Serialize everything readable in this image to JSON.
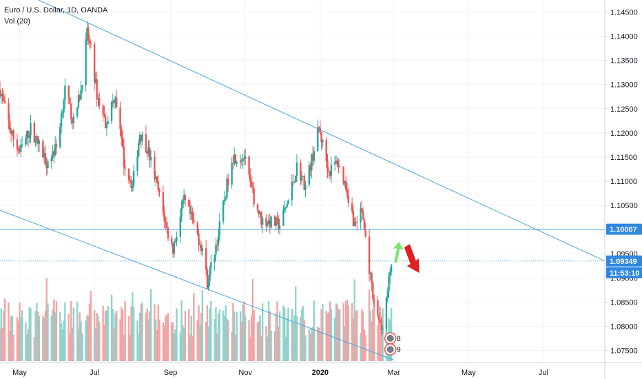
{
  "legend": {
    "title": "Euro / U.S. Dollar, 1D, OANDA",
    "volume_label": "Vol (20)"
  },
  "colors": {
    "up": "#26a69a",
    "down": "#ef5350",
    "vol_up": "#8fd3cc",
    "vol_down": "#f3a4a4",
    "trendline": "#4aa3df",
    "price_tag": "#2f87e0",
    "arrow_up": "#7be36f",
    "arrow_down": "#e02020",
    "grid": "#f0f3fa",
    "axis_text": "#131722"
  },
  "chart_data": {
    "type": "candlestick",
    "symbol": "Euro / U.S. Dollar",
    "interval": "1D",
    "source": "OANDA",
    "x_domain": [
      "2019-04-15",
      "2020-08-20"
    ],
    "y_range": [
      1.0725,
      1.1475
    ],
    "y_ticks": [
      "1.07500",
      "1.08000",
      "1.08500",
      "1.09000",
      "1.09500",
      "1.10000",
      "1.10500",
      "1.11000",
      "1.11500",
      "1.12000",
      "1.12500",
      "1.13000",
      "1.13500",
      "1.14000",
      "1.14500"
    ],
    "x_ticks": [
      {
        "label": "May",
        "date": "2019-05-01"
      },
      {
        "label": "Jul",
        "date": "2019-07-01"
      },
      {
        "label": "Sep",
        "date": "2019-09-01"
      },
      {
        "label": "Nov",
        "date": "2019-11-01"
      },
      {
        "label": "2020",
        "date": "2020-01-01"
      },
      {
        "label": "Mar",
        "date": "2020-03-01"
      },
      {
        "label": "May",
        "date": "2020-05-01"
      },
      {
        "label": "Jul",
        "date": "2020-07-01"
      }
    ],
    "price_path": [
      [
        "2019-04-15",
        1.129
      ],
      [
        "2019-04-24",
        1.12
      ],
      [
        "2019-05-01",
        1.116
      ],
      [
        "2019-05-10",
        1.121
      ],
      [
        "2019-05-23",
        1.114
      ],
      [
        "2019-05-31",
        1.117
      ],
      [
        "2019-06-07",
        1.129
      ],
      [
        "2019-06-14",
        1.122
      ],
      [
        "2019-06-20",
        1.129
      ],
      [
        "2019-06-25",
        1.1405
      ],
      [
        "2019-06-28",
        1.137
      ],
      [
        "2019-07-03",
        1.128
      ],
      [
        "2019-07-10",
        1.122
      ],
      [
        "2019-07-18",
        1.128
      ],
      [
        "2019-07-25",
        1.114
      ],
      [
        "2019-08-01",
        1.109
      ],
      [
        "2019-08-07",
        1.12
      ],
      [
        "2019-08-13",
        1.117
      ],
      [
        "2019-08-22",
        1.108
      ],
      [
        "2019-08-30",
        1.099
      ],
      [
        "2019-09-03",
        1.096
      ],
      [
        "2019-09-12",
        1.106
      ],
      [
        "2019-09-20",
        1.101
      ],
      [
        "2019-09-27",
        1.096
      ],
      [
        "2019-10-01",
        1.089
      ],
      [
        "2019-10-10",
        1.099
      ],
      [
        "2019-10-21",
        1.115
      ],
      [
        "2019-10-31",
        1.115
      ],
      [
        "2019-11-06",
        1.108
      ],
      [
        "2019-11-14",
        1.102
      ],
      [
        "2019-11-29",
        1.101
      ],
      [
        "2019-12-06",
        1.106
      ],
      [
        "2019-12-13",
        1.113
      ],
      [
        "2019-12-20",
        1.109
      ],
      [
        "2019-12-31",
        1.121
      ],
      [
        "2020-01-08",
        1.112
      ],
      [
        "2020-01-15",
        1.114
      ],
      [
        "2020-01-22",
        1.109
      ],
      [
        "2020-01-29",
        1.101
      ],
      [
        "2020-02-04",
        1.104
      ],
      [
        "2020-02-12",
        1.088
      ],
      [
        "2020-02-20",
        1.079
      ],
      [
        "2020-02-24",
        1.085
      ],
      [
        "2020-02-28",
        1.0935
      ]
    ],
    "last_candle_date": "2020-02-28",
    "last_price": 1.09349,
    "levels": [
      {
        "price": 1.10007,
        "label": "1.10007",
        "style": "solid"
      },
      {
        "price": 1.09349,
        "label": "1.09349",
        "style": "dotted"
      }
    ],
    "countdown": "11:53:10",
    "trendlines": [
      {
        "from": [
          "2019-04-25",
          1.15
        ],
        "to": [
          "2020-08-20",
          1.0935
        ]
      },
      {
        "from": [
          "2019-04-15",
          1.104
        ],
        "to": [
          "2020-03-01",
          1.073
        ]
      }
    ],
    "arrows": [
      {
        "direction": "up",
        "at": [
          "2020-03-03",
          1.0975
        ]
      },
      {
        "direction": "down",
        "at": [
          "2020-03-14",
          1.097
        ]
      }
    ],
    "event_badges": [
      {
        "label": "8",
        "date": "2020-03-01",
        "price": 1.0775
      },
      {
        "label": "9",
        "date": "2020-03-01",
        "price": 1.0752
      }
    ]
  }
}
